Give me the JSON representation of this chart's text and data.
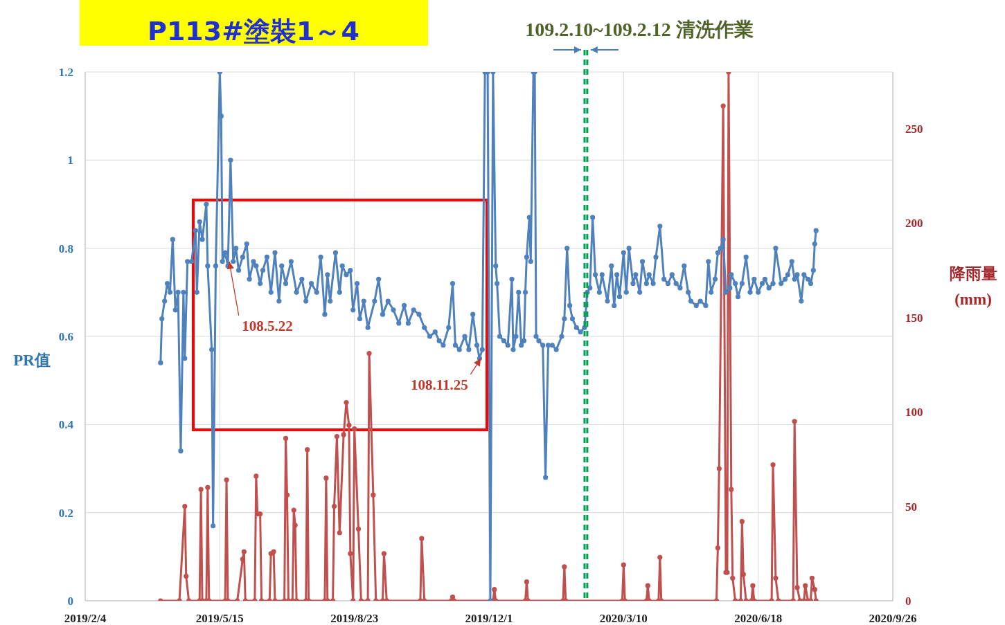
{
  "chart_data": {
    "type": "line",
    "title": "P113#塗裝1～4",
    "ylabel": "PR值",
    "y2label": "降雨量\n(mm)",
    "xlim": [
      "2019-02-04",
      "2020-09-26"
    ],
    "xticks": [
      {
        "value": "2019-02-04",
        "label": "2019/2/4"
      },
      {
        "value": "2019-05-15",
        "label": "2019/5/15"
      },
      {
        "value": "2019-08-23",
        "label": "2019/8/23"
      },
      {
        "value": "2019-12-01",
        "label": "2019/12/1"
      },
      {
        "value": "2020-03-10",
        "label": "2020/3/10"
      },
      {
        "value": "2020-06-18",
        "label": "2020/6/18"
      },
      {
        "value": "2020-09-26",
        "label": "2020/9/26"
      }
    ],
    "ylim": [
      0,
      1.2
    ],
    "yticks": [
      0,
      0.2,
      0.4,
      0.6,
      0.8,
      1,
      1.2
    ],
    "y2lim": [
      0,
      280
    ],
    "y2ticks": [
      0,
      50,
      100,
      150,
      200,
      250
    ],
    "grid": true,
    "marker": "circle",
    "line_style": "solid",
    "series": [
      {
        "color": "#4f81bd",
        "x": [
          "2019-04-01",
          "2019-04-02",
          "2019-04-04",
          "2019-04-06",
          "2019-04-08",
          "2019-04-10",
          "2019-04-12",
          "2019-04-14",
          "2019-04-16",
          "2019-04-18",
          "2019-04-19",
          "2019-04-21",
          "2019-04-24",
          "2019-04-27",
          "2019-04-28",
          "2019-04-30",
          "2019-05-02",
          "2019-05-05",
          "2019-05-06",
          "2019-05-09",
          "2019-05-10",
          "2019-05-12",
          "2019-05-15",
          "2019-05-16",
          "2019-05-17",
          "2019-05-19",
          "2019-05-21",
          "2019-05-23",
          "2019-05-25",
          "2019-05-27",
          "2019-05-29",
          "2019-06-01",
          "2019-06-04",
          "2019-06-06",
          "2019-06-09",
          "2019-06-11",
          "2019-06-14",
          "2019-06-16",
          "2019-06-19",
          "2019-06-22",
          "2019-06-25",
          "2019-06-28",
          "2019-06-30",
          "2019-07-03",
          "2019-07-07",
          "2019-07-11",
          "2019-07-15",
          "2019-07-18",
          "2019-07-22",
          "2019-07-26",
          "2019-07-29",
          "2019-08-01",
          "2019-08-03",
          "2019-08-05",
          "2019-08-09",
          "2019-08-12",
          "2019-08-14",
          "2019-08-17",
          "2019-08-20",
          "2019-08-22",
          "2019-08-25",
          "2019-08-27",
          "2019-08-30",
          "2019-09-02",
          "2019-09-07",
          "2019-09-10",
          "2019-09-13",
          "2019-09-17",
          "2019-09-21",
          "2019-09-25",
          "2019-09-29",
          "2019-10-02",
          "2019-10-06",
          "2019-10-10",
          "2019-10-14",
          "2019-10-18",
          "2019-10-22",
          "2019-10-25",
          "2019-10-28",
          "2019-11-01",
          "2019-11-04",
          "2019-11-06",
          "2019-11-09",
          "2019-11-13",
          "2019-11-16",
          "2019-11-19",
          "2019-11-22",
          "2019-11-24",
          "2019-11-26",
          "2019-11-28",
          "2019-11-30",
          "2019-12-02",
          "2019-12-04",
          "2019-12-06",
          "2019-12-07",
          "2019-12-09",
          "2019-12-12",
          "2019-12-15",
          "2019-12-18",
          "2019-12-19",
          "2019-12-21",
          "2019-12-23",
          "2019-12-25",
          "2019-12-27",
          "2019-12-28",
          "2019-12-29",
          "2019-12-31",
          "2020-01-01",
          "2020-01-03",
          "2020-01-04",
          "2020-01-05",
          "2020-01-07",
          "2020-01-10",
          "2020-01-12",
          "2020-01-14",
          "2020-01-17",
          "2020-01-20",
          "2020-01-24",
          "2020-01-26",
          "2020-01-28",
          "2020-01-30",
          "2020-02-01",
          "2020-02-04",
          "2020-02-07",
          "2020-02-10",
          "2020-02-12",
          "2020-02-14",
          "2020-02-16",
          "2020-02-18",
          "2020-02-21",
          "2020-02-23",
          "2020-02-27",
          "2020-03-01",
          "2020-03-03",
          "2020-03-05",
          "2020-03-07",
          "2020-03-10",
          "2020-03-12",
          "2020-03-14",
          "2020-03-17",
          "2020-03-19",
          "2020-03-22",
          "2020-03-24",
          "2020-03-27",
          "2020-03-29",
          "2020-04-01",
          "2020-04-03",
          "2020-04-06",
          "2020-04-09",
          "2020-04-12",
          "2020-04-15",
          "2020-04-18",
          "2020-04-21",
          "2020-04-24",
          "2020-04-27",
          "2020-04-29",
          "2020-05-03",
          "2020-05-06",
          "2020-05-10",
          "2020-05-12",
          "2020-05-14",
          "2020-05-17",
          "2020-05-19",
          "2020-05-21",
          "2020-05-23",
          "2020-05-25",
          "2020-05-28",
          "2020-05-29",
          "2020-06-01",
          "2020-06-03",
          "2020-06-06",
          "2020-06-09",
          "2020-06-12",
          "2020-06-15",
          "2020-06-18",
          "2020-06-21",
          "2020-06-23",
          "2020-06-26",
          "2020-06-29",
          "2020-07-01",
          "2020-07-05",
          "2020-07-08",
          "2020-07-10",
          "2020-07-13",
          "2020-07-15",
          "2020-07-17",
          "2020-07-20",
          "2020-07-22",
          "2020-07-25",
          "2020-07-27",
          "2020-07-29",
          "2020-07-30",
          "2020-07-31"
        ],
        "values": [
          0.54,
          0.64,
          0.68,
          0.72,
          0.7,
          0.82,
          0.66,
          0.7,
          0.34,
          0.7,
          0.55,
          0.77,
          0.77,
          0.84,
          0.7,
          0.86,
          0.82,
          0.9,
          0.76,
          0.57,
          0.17,
          0.76,
          1.2,
          1.1,
          0.77,
          0.79,
          0.76,
          1.0,
          0.77,
          0.8,
          0.75,
          0.78,
          0.81,
          0.73,
          0.77,
          0.76,
          0.72,
          0.75,
          0.78,
          0.7,
          0.79,
          0.68,
          0.76,
          0.72,
          0.77,
          0.7,
          0.73,
          0.68,
          0.72,
          0.7,
          0.78,
          0.65,
          0.74,
          0.68,
          0.79,
          0.7,
          0.76,
          0.74,
          0.75,
          0.66,
          0.72,
          0.64,
          0.68,
          0.62,
          0.68,
          0.73,
          0.65,
          0.68,
          0.66,
          0.63,
          0.67,
          0.63,
          0.66,
          0.65,
          0.62,
          0.6,
          0.61,
          0.59,
          0.58,
          0.62,
          0.72,
          0.58,
          0.57,
          0.6,
          0.57,
          0.65,
          0.58,
          0.55,
          0.57,
          1.2,
          1.2,
          0,
          1.2,
          0.76,
          0.72,
          0.6,
          0.59,
          0.58,
          0.73,
          0.57,
          0.6,
          0.7,
          0.58,
          0.59,
          0.7,
          0.78,
          0.87,
          0.77,
          1.2,
          1.2,
          0.6,
          0.59,
          0.58,
          0.28,
          0.58,
          0.58,
          0.57,
          0.6,
          0.64,
          0.8,
          0.67,
          0.64,
          0.62,
          0.61,
          0.62,
          0.7,
          0.71,
          0.87,
          0.74,
          0.7,
          0.74,
          0.68,
          0.76,
          0.67,
          0.74,
          0.69,
          0.79,
          0.7,
          0.8,
          0.72,
          0.74,
          0.7,
          0.77,
          0.72,
          0.74,
          0.72,
          0.78,
          0.85,
          0.73,
          0.72,
          0.74,
          0.72,
          0.71,
          0.76,
          0.7,
          0.68,
          0.67,
          0.68,
          0.67,
          0.77,
          0.7,
          0.73,
          0.79,
          0.8,
          0.82,
          0.7,
          0.71,
          0.74,
          0.72,
          0.69,
          0.72,
          0.78,
          0.7,
          0.73,
          0.7,
          0.72,
          0.73,
          0.71,
          0.72,
          0.8,
          0.72,
          0.73,
          0.74,
          0.77,
          0.73,
          0.74,
          0.68,
          0.74,
          0.73,
          0.72,
          0.75,
          0.81,
          0.84
        ]
      },
      {
        "color": "#c0504d",
        "axis": "y2",
        "x": [
          "2019-04-01",
          "2019-04-15",
          "2019-04-19",
          "2019-04-20",
          "2019-04-22",
          "2019-04-30",
          "2019-05-01",
          "2019-05-02",
          "2019-05-05",
          "2019-05-06",
          "2019-05-07",
          "2019-05-19",
          "2019-05-20",
          "2019-05-21",
          "2019-05-28",
          "2019-06-01",
          "2019-06-02",
          "2019-06-03",
          "2019-06-10",
          "2019-06-11",
          "2019-06-12",
          "2019-06-14",
          "2019-06-15",
          "2019-06-21",
          "2019-06-22",
          "2019-06-24",
          "2019-06-25",
          "2019-07-02",
          "2019-07-03",
          "2019-07-04",
          "2019-07-05",
          "2019-07-08",
          "2019-07-09",
          "2019-07-10",
          "2019-07-11",
          "2019-07-18",
          "2019-07-19",
          "2019-07-20",
          "2019-08-01",
          "2019-08-02",
          "2019-08-03",
          "2019-08-07",
          "2019-08-08",
          "2019-08-10",
          "2019-08-12",
          "2019-08-15",
          "2019-08-17",
          "2019-08-19",
          "2019-08-20",
          "2019-08-22",
          "2019-08-23",
          "2019-08-26",
          "2019-08-28",
          "2019-09-02",
          "2019-09-03",
          "2019-09-06",
          "2019-09-08",
          "2019-09-13",
          "2019-09-14",
          "2019-09-16",
          "2019-10-11",
          "2019-10-12",
          "2019-10-14",
          "2019-11-03",
          "2019-11-04",
          "2019-11-05",
          "2019-12-04",
          "2019-12-05",
          "2019-12-06",
          "2019-12-28",
          "2019-12-29",
          "2019-12-30",
          "2020-01-25",
          "2020-01-26",
          "2020-01-27",
          "2020-03-09",
          "2020-03-10",
          "2020-03-11",
          "2020-03-27",
          "2020-03-28",
          "2020-03-29",
          "2020-04-05",
          "2020-04-06",
          "2020-04-07",
          "2020-05-18",
          "2020-05-19",
          "2020-05-20",
          "2020-05-23",
          "2020-05-25",
          "2020-05-26",
          "2020-05-27",
          "2020-05-29",
          "2020-05-30",
          "2020-06-01",
          "2020-06-05",
          "2020-06-06",
          "2020-06-07",
          "2020-06-09",
          "2020-06-13",
          "2020-06-14",
          "2020-06-15",
          "2020-06-28",
          "2020-06-29",
          "2020-07-01",
          "2020-07-03",
          "2020-07-14",
          "2020-07-15",
          "2020-07-17",
          "2020-07-19",
          "2020-07-22",
          "2020-07-23",
          "2020-07-25",
          "2020-07-27",
          "2020-07-28",
          "2020-07-30",
          "2020-07-31"
        ],
        "values": [
          0,
          0,
          50,
          13,
          0,
          0,
          59,
          0,
          0,
          60,
          0,
          0,
          64,
          0,
          0,
          22,
          26,
          0,
          0,
          66,
          46,
          46,
          0,
          0,
          25,
          26,
          0,
          0,
          86,
          56,
          0,
          0,
          48,
          40,
          0,
          0,
          80,
          0,
          0,
          65,
          0,
          0,
          50,
          87,
          36,
          88,
          105,
          93,
          25,
          0,
          91,
          38,
          0,
          0,
          131,
          56,
          0,
          0,
          25,
          0,
          0,
          33,
          0,
          0,
          2,
          0,
          0,
          6,
          0,
          0,
          10,
          0,
          0,
          18,
          0,
          0,
          19,
          0,
          0,
          8,
          0,
          0,
          23,
          0,
          0,
          28,
          70,
          262,
          15,
          15,
          280,
          59,
          12,
          0,
          0,
          42,
          14,
          0,
          0,
          8,
          0,
          0,
          72,
          12,
          0,
          0,
          95,
          7,
          0,
          0,
          8,
          0,
          0,
          12,
          6,
          0
        ]
      }
    ],
    "ref_lines": [
      {
        "axis": "x",
        "value": "2020-02-10",
        "label": "109.2.10~109.2.12 清洗作業",
        "color": "#00a050",
        "line_style": "dashed"
      },
      {
        "axis": "x",
        "value": "2020-02-12",
        "color": "#00a050",
        "line_style": "dashed"
      }
    ],
    "annotations": [
      {
        "text": "108.5.22",
        "x": "2019-05-22",
        "y": 0.77
      },
      {
        "text": "108.11.25",
        "x": "2019-11-25",
        "y": 0.55
      }
    ]
  }
}
